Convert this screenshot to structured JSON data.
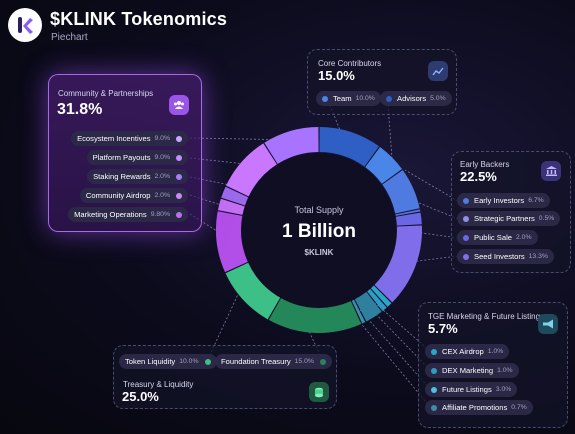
{
  "header": {
    "title": "$KLINK Tokenomics",
    "subtitle": "Piechart"
  },
  "center": {
    "label": "Total Supply",
    "value": "1 Billion",
    "ticker": "$KLINK"
  },
  "groups": {
    "community": {
      "title": "Community & Partnerships",
      "pct": "31.8%",
      "icon": "people-icon",
      "items": [
        {
          "label": "Ecosystem Incentives",
          "value": "9.0%"
        },
        {
          "label": "Platform Payouts",
          "value": "9.0%"
        },
        {
          "label": "Staking Rewards",
          "value": "2.0%"
        },
        {
          "label": "Community Airdrop",
          "value": "2.0%"
        },
        {
          "label": "Marketing Operations",
          "value": "9.80%"
        }
      ]
    },
    "core": {
      "title": "Core Contributors",
      "pct": "15.0%",
      "icon": "trend-icon",
      "items": [
        {
          "label": "Team",
          "value": "10.0%"
        },
        {
          "label": "Advisors",
          "value": "5.0%"
        }
      ]
    },
    "backers": {
      "title": "Early Backers",
      "pct": "22.5%",
      "icon": "bank-icon",
      "items": [
        {
          "label": "Early Investors",
          "value": "6.7%"
        },
        {
          "label": "Strategic Partners",
          "value": "0.5%"
        },
        {
          "label": "Public Sale",
          "value": "2.0%"
        },
        {
          "label": "Seed Investors",
          "value": "13.3%"
        }
      ]
    },
    "tge": {
      "title": "TGE Marketing & Future Listings",
      "pct": "5.7%",
      "icon": "megaphone-icon",
      "items": [
        {
          "label": "CEX Airdrop",
          "value": "1.0%"
        },
        {
          "label": "DEX Marketing",
          "value": "1.0%"
        },
        {
          "label": "Future Listings",
          "value": "3.0%"
        },
        {
          "label": "Affiliate Promotions",
          "value": "0.7%"
        }
      ]
    },
    "treasury": {
      "title": "Treasury & Liquidity",
      "pct": "25.0%",
      "icon": "coins-icon",
      "items": [
        {
          "label": "Token Liquidity",
          "value": "10.0%"
        },
        {
          "label": "Foundation Treasury",
          "value": "15.0%"
        }
      ]
    }
  },
  "chart_data": {
    "type": "pie",
    "title": "$KLINK Tokenomics",
    "subtitle": "Piechart",
    "center_text": [
      "Total Supply",
      "1 Billion",
      "$KLINK"
    ],
    "series": [
      {
        "name": "Core Contributors",
        "color": "#3a6fd8",
        "slices": [
          {
            "label": "Team",
            "value": 10.0,
            "color": "#2f5fc4"
          },
          {
            "label": "Advisors",
            "value": 5.0,
            "color": "#4a86e8"
          }
        ]
      },
      {
        "name": "Early Backers",
        "color": "#6f63e6",
        "slices": [
          {
            "label": "Early Investors",
            "value": 6.7,
            "color": "#4f7ae0"
          },
          {
            "label": "Strategic Partners",
            "value": 0.5,
            "color": "#5d6fe2"
          },
          {
            "label": "Public Sale",
            "value": 2.0,
            "color": "#6a67e4"
          },
          {
            "label": "Seed Investors",
            "value": 13.3,
            "color": "#7f6de9"
          }
        ]
      },
      {
        "name": "TGE Marketing & Future Listings",
        "color": "#2c8fb0",
        "slices": [
          {
            "label": "CEX Airdrop",
            "value": 1.0,
            "color": "#2aa7c8"
          },
          {
            "label": "DEX Marketing",
            "value": 1.0,
            "color": "#2f9bc2"
          },
          {
            "label": "Future Listings",
            "value": 3.0,
            "color": "#2f7f9e"
          },
          {
            "label": "Affiliate Promotions",
            "value": 0.7,
            "color": "#3a8fa8"
          }
        ]
      },
      {
        "name": "Treasury & Liquidity",
        "color": "#2f9a6a",
        "slices": [
          {
            "label": "Foundation Treasury",
            "value": 15.0,
            "color": "#24875a"
          },
          {
            "label": "Token Liquidity",
            "value": 10.0,
            "color": "#3dbf88"
          }
        ]
      },
      {
        "name": "Community & Partnerships",
        "color": "#a85cf0",
        "slices": [
          {
            "label": "Marketing Operations",
            "value": 9.8,
            "color": "#b24fe8"
          },
          {
            "label": "Community Airdrop",
            "value": 2.0,
            "color": "#c46ff2"
          },
          {
            "label": "Staking Rewards",
            "value": 2.0,
            "color": "#9c68ec"
          },
          {
            "label": "Platform Payouts",
            "value": 9.0,
            "color": "#c977ff"
          },
          {
            "label": "Ecosystem Incentives",
            "value": 9.0,
            "color": "#a874ff"
          }
        ]
      }
    ]
  }
}
